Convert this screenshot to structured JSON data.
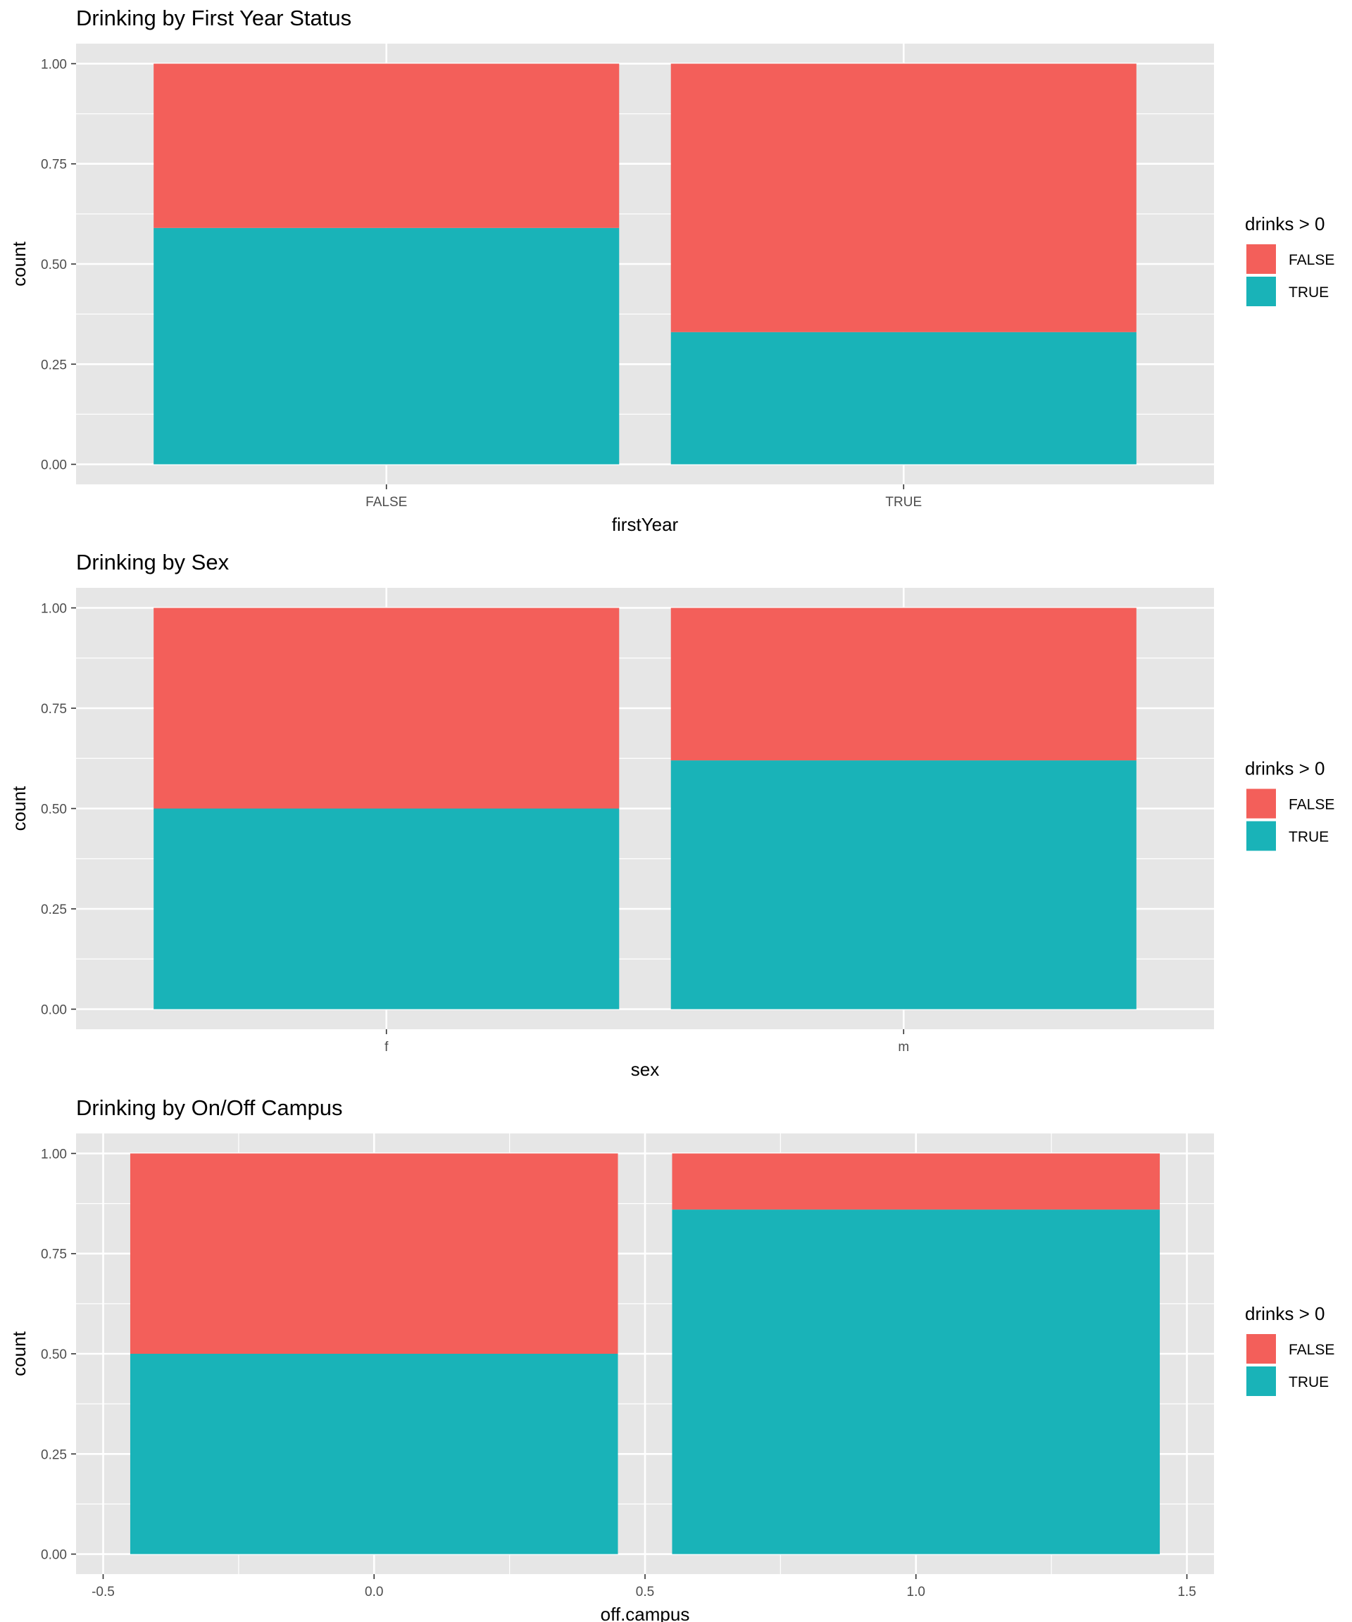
{
  "colors": {
    "false_fill": "#F35F5A",
    "true_fill": "#19B3B8",
    "panel_bg": "#E6E6E6",
    "grid": "#FFFFFF",
    "axis_text": "#4D4D4D",
    "title_text": "#000000"
  },
  "chart_data": [
    {
      "type": "bar",
      "stacked": true,
      "title": "Drinking by First Year Status",
      "xlabel": "firstYear",
      "ylabel": "count",
      "x_scale": "discrete",
      "categories": [
        "FALSE",
        "TRUE"
      ],
      "ylim": [
        0,
        1
      ],
      "yticks": [
        0.0,
        0.25,
        0.5,
        0.75,
        1.0
      ],
      "ytick_labels": [
        "0.00",
        "0.25",
        "0.50",
        "0.75",
        "1.00"
      ],
      "series": [
        {
          "name": "TRUE",
          "values": [
            0.59,
            0.33
          ]
        },
        {
          "name": "FALSE",
          "values": [
            0.41,
            0.67
          ]
        }
      ],
      "legend": {
        "title": "drinks > 0",
        "entries": [
          "FALSE",
          "TRUE"
        ],
        "placement": "right"
      }
    },
    {
      "type": "bar",
      "stacked": true,
      "title": "Drinking by Sex",
      "xlabel": "sex",
      "ylabel": "count",
      "x_scale": "discrete",
      "categories": [
        "f",
        "m"
      ],
      "ylim": [
        0,
        1
      ],
      "yticks": [
        0.0,
        0.25,
        0.5,
        0.75,
        1.0
      ],
      "ytick_labels": [
        "0.00",
        "0.25",
        "0.50",
        "0.75",
        "1.00"
      ],
      "series": [
        {
          "name": "TRUE",
          "values": [
            0.5,
            0.62
          ]
        },
        {
          "name": "FALSE",
          "values": [
            0.5,
            0.38
          ]
        }
      ],
      "legend": {
        "title": "drinks > 0",
        "entries": [
          "FALSE",
          "TRUE"
        ],
        "placement": "right"
      }
    },
    {
      "type": "bar",
      "stacked": true,
      "title": "Drinking by On/Off Campus",
      "xlabel": "off.campus",
      "ylabel": "count",
      "x_scale": "continuous",
      "x": [
        0,
        1
      ],
      "bar_width": 0.9,
      "xlim": [
        -0.55,
        1.55
      ],
      "xticks": [
        -0.5,
        0.0,
        0.5,
        1.0,
        1.5
      ],
      "xtick_labels": [
        "-0.5",
        "0.0",
        "0.5",
        "1.0",
        "1.5"
      ],
      "ylim": [
        0,
        1
      ],
      "yticks": [
        0.0,
        0.25,
        0.5,
        0.75,
        1.0
      ],
      "ytick_labels": [
        "0.00",
        "0.25",
        "0.50",
        "0.75",
        "1.00"
      ],
      "series": [
        {
          "name": "TRUE",
          "values": [
            0.5,
            0.86
          ]
        },
        {
          "name": "FALSE",
          "values": [
            0.5,
            0.14
          ]
        }
      ],
      "legend": {
        "title": "drinks > 0",
        "entries": [
          "FALSE",
          "TRUE"
        ],
        "placement": "right"
      }
    }
  ]
}
